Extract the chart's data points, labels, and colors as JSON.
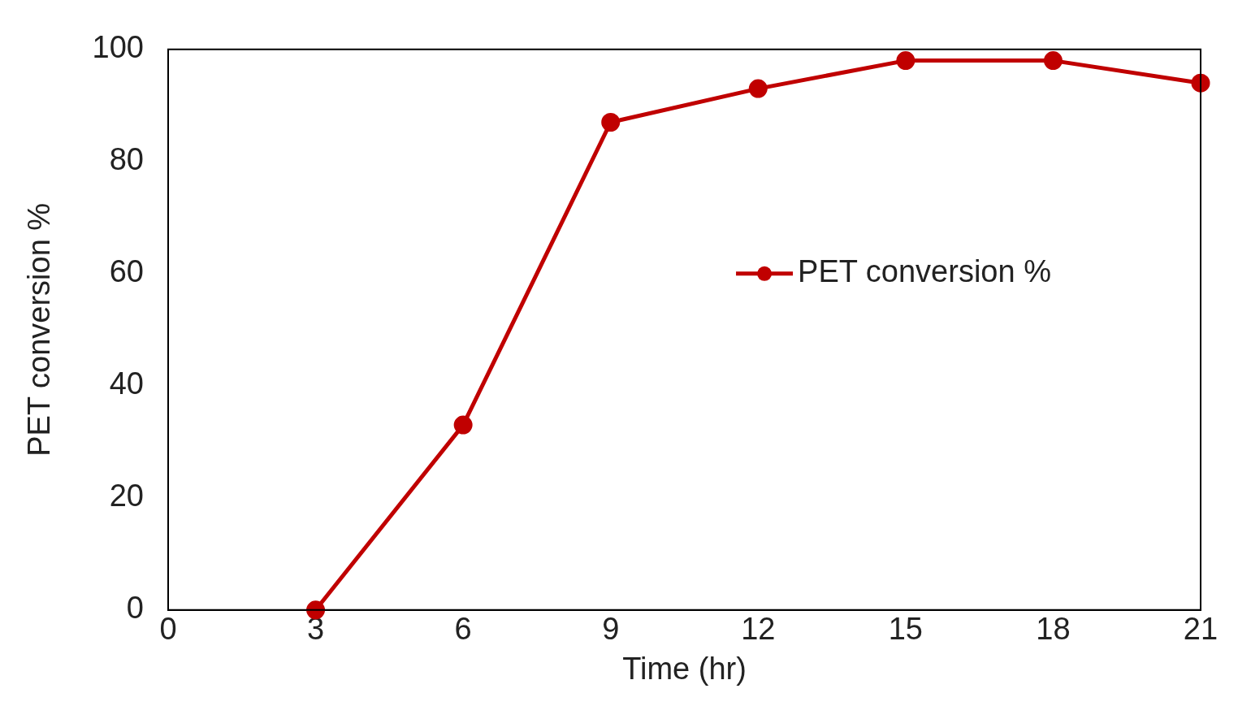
{
  "chart_data": {
    "type": "line",
    "xlabel": "Time (hr)",
    "ylabel": "PET conversion %",
    "x": [
      3,
      6,
      9,
      12,
      15,
      18,
      21
    ],
    "series": [
      {
        "name": "PET conversion %",
        "color": "#c00000",
        "values": [
          0,
          33,
          87,
          93,
          98,
          98,
          94
        ]
      }
    ],
    "xlim": [
      0,
      21
    ],
    "xticks": [
      0,
      3,
      6,
      9,
      12,
      15,
      18,
      21
    ],
    "ylim": [
      0,
      100
    ],
    "yticks": [
      0,
      20,
      40,
      60,
      80,
      100
    ],
    "grid": false,
    "legend": "right",
    "marker": "circle",
    "line_style": "solid"
  }
}
